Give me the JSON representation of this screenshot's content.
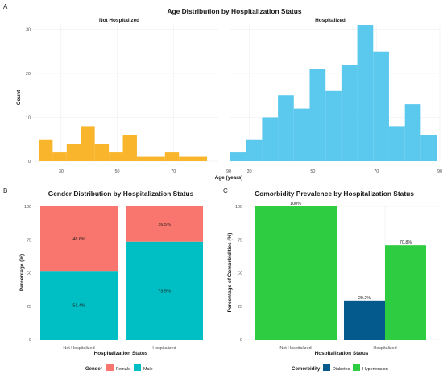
{
  "panels": [
    "A",
    "B",
    "C"
  ],
  "colors": {
    "not_hospitalized": "#f9b52c",
    "hospitalized": "#5bc8ed",
    "female": "#f8766d",
    "male": "#00bfc4",
    "diabetes": "#045a8d",
    "hypertension": "#2ecc40"
  },
  "chart_data": [
    {
      "type": "bar",
      "subtype": "histogram",
      "title": "Age Distribution by Hospitalization Status",
      "xlabel": "Age (years)",
      "ylabel": "Count",
      "ylim": [
        0,
        31
      ],
      "yticks": [
        0,
        10,
        20,
        30
      ],
      "bin_width": 5,
      "facets": [
        {
          "name": "Not Hospitalized",
          "xlim": [
            20,
            86
          ],
          "xticks": [
            30,
            50,
            70
          ],
          "bin_starts": [
            22,
            27,
            32,
            37,
            42,
            47,
            52,
            57,
            62,
            67,
            72,
            77
          ],
          "values": [
            5,
            2,
            4,
            8,
            4,
            2,
            6,
            1,
            1,
            2,
            1,
            1
          ]
        },
        {
          "name": "Hospitalized",
          "xlim": [
            24,
            90
          ],
          "xticks": [
            30,
            50,
            70,
            90
          ],
          "bin_starts": [
            24,
            29,
            34,
            39,
            44,
            49,
            54,
            59,
            64,
            69,
            74,
            79,
            84
          ],
          "values": [
            2,
            5,
            10,
            15,
            12,
            21,
            16,
            22,
            31,
            25,
            8,
            13,
            6
          ]
        }
      ],
      "left_edge_tick": "90"
    },
    {
      "type": "bar",
      "subtype": "stacked-percent",
      "title": "Gender Distribution by Hospitalization Status",
      "xlabel": "Hospitalization Status",
      "ylabel": "Percentage (%)",
      "ylim": [
        0,
        100
      ],
      "yticks": [
        0,
        25,
        50,
        75,
        100
      ],
      "categories": [
        "Not Hospitalized",
        "Hospitalized"
      ],
      "series": [
        {
          "name": "Male",
          "values": [
            51.4,
            73.5
          ],
          "labels": [
            "51.4%",
            "73.5%"
          ]
        },
        {
          "name": "Female",
          "values": [
            48.6,
            26.5
          ],
          "labels": [
            "48.6%",
            "26.5%"
          ]
        }
      ],
      "legend": {
        "title": "Gender",
        "entries": [
          "Female",
          "Male"
        ],
        "position": "bottom"
      }
    },
    {
      "type": "bar",
      "subtype": "grouped",
      "title": "Comorbidity Prevalence by Hospitalization Status",
      "xlabel": "Hospitalization Status",
      "ylabel": "Percentage of Comorbidities (%)",
      "ylim": [
        0,
        100
      ],
      "yticks": [
        0,
        25,
        50,
        75,
        100
      ],
      "categories": [
        "Not Hospitalized",
        "Hospitalized"
      ],
      "groups": [
        [
          {
            "series": "Hypertension",
            "value": 100,
            "label": "100%"
          }
        ],
        [
          {
            "series": "Diabetes",
            "value": 29.2,
            "label": "29.2%"
          },
          {
            "series": "Hypertension",
            "value": 70.8,
            "label": "70.8%"
          }
        ]
      ],
      "legend": {
        "title": "Comorbidity",
        "entries": [
          "Diabetes",
          "Hypertension"
        ],
        "position": "bottom"
      }
    }
  ]
}
